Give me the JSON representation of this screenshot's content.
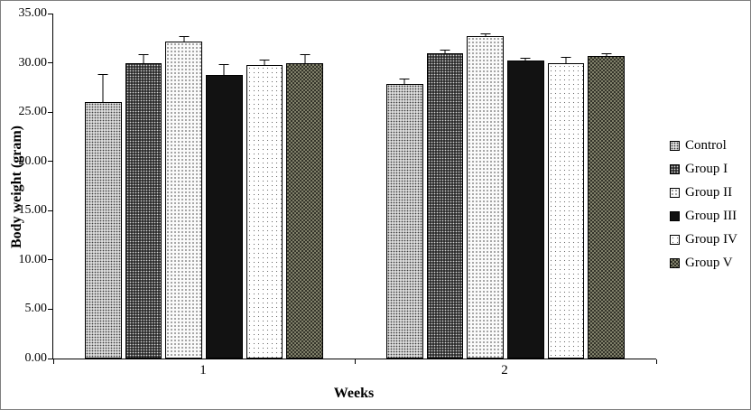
{
  "figure": {
    "background": "#ffffff",
    "border_color": "#7f7f7f",
    "text_color": "#000000"
  },
  "chart_data": {
    "type": "bar",
    "title": "",
    "xlabel": "Weeks",
    "ylabel": "Body weight (gram)",
    "ylim": [
      0,
      35
    ],
    "ytick_step": 5,
    "ytick_labels": [
      "0.00",
      "5.00",
      "10.00",
      "15.00",
      "20.00",
      "25.00",
      "30.00",
      "35.00"
    ],
    "categories": [
      "1",
      "2"
    ],
    "grid": false,
    "legend_position": "right",
    "error_bars": true,
    "series": [
      {
        "name": "Control",
        "pattern": "light-dots",
        "values": [
          26.0,
          27.9
        ],
        "errors": [
          3.0,
          0.6
        ]
      },
      {
        "name": "Group I",
        "pattern": "dark-dots",
        "values": [
          30.0,
          31.0
        ],
        "errors": [
          1.0,
          0.4
        ]
      },
      {
        "name": "Group II",
        "pattern": "sparse-dots",
        "values": [
          32.2,
          32.7
        ],
        "errors": [
          0.6,
          0.4
        ]
      },
      {
        "name": "Group III",
        "pattern": "solid-black",
        "values": [
          28.8,
          30.2
        ],
        "errors": [
          1.2,
          0.4
        ]
      },
      {
        "name": "Group IV",
        "pattern": "fine-dots",
        "values": [
          29.8,
          30.0
        ],
        "errors": [
          0.6,
          0.7
        ]
      },
      {
        "name": "Group V",
        "pattern": "dark-grid",
        "values": [
          30.0,
          30.7
        ],
        "errors": [
          1.0,
          0.4
        ]
      }
    ]
  }
}
